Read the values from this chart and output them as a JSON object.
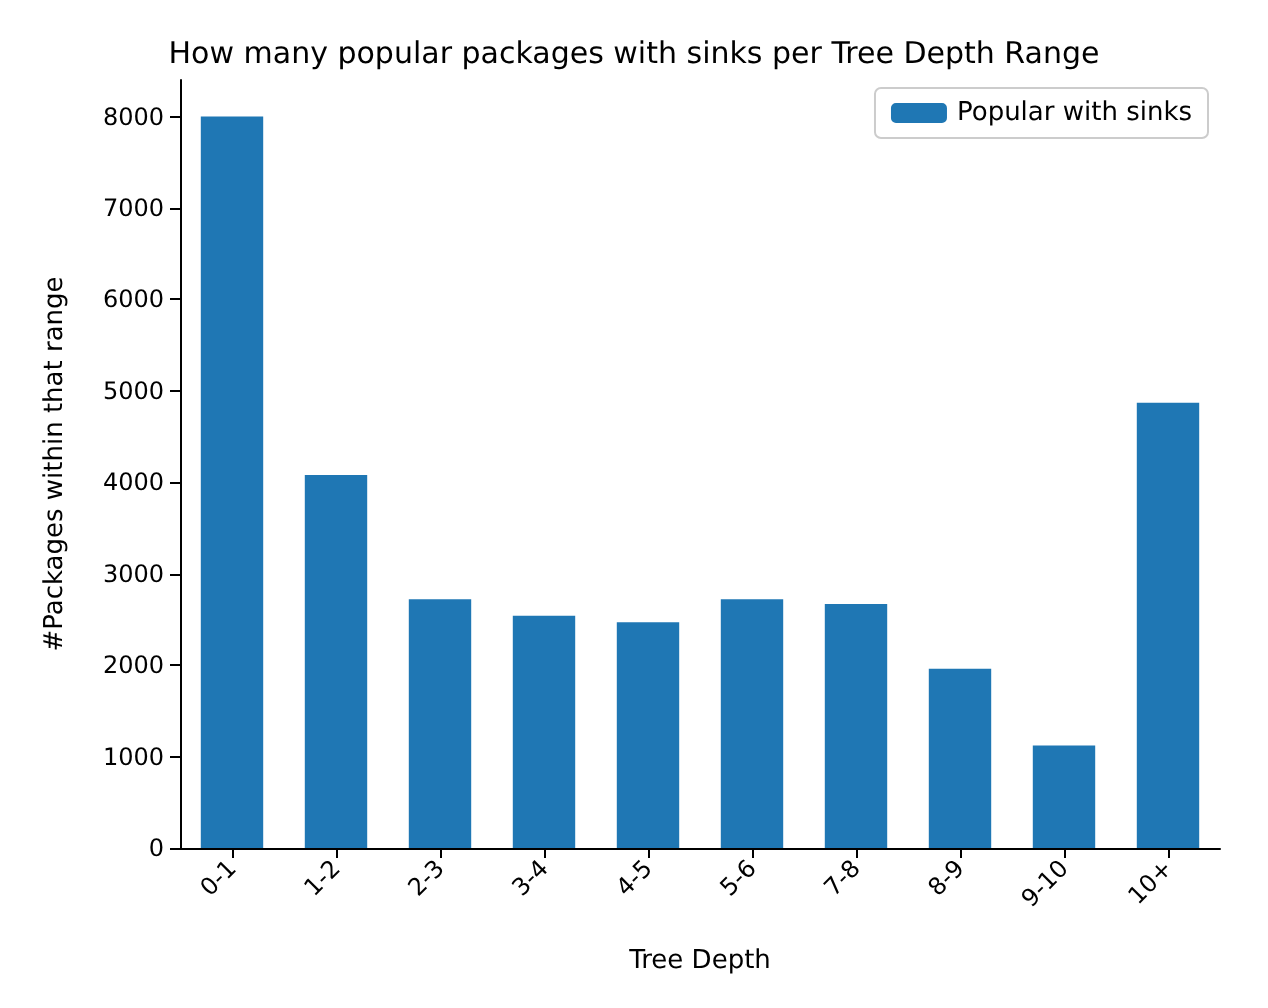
{
  "chart_data": {
    "type": "bar",
    "title": "How many popular packages with sinks per Tree Depth Range",
    "xlabel": "Tree Depth",
    "ylabel": "#Packages within that range",
    "categories": [
      "0-1",
      "1-2",
      "2-3",
      "3-4",
      "4-5",
      "5-6",
      "7-8",
      "8-9",
      "9-10",
      "10+"
    ],
    "series": [
      {
        "name": "Popular with sinks",
        "color": "#1f77b4",
        "values": [
          8000,
          4080,
          2720,
          2540,
          2470,
          2720,
          2670,
          1960,
          1120,
          4870
        ]
      }
    ],
    "ylim": [
      0,
      8400
    ],
    "yticks": [
      0,
      1000,
      2000,
      3000,
      4000,
      5000,
      6000,
      7000,
      8000
    ],
    "grid": false,
    "legend": "top right"
  }
}
